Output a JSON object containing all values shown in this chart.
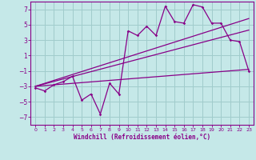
{
  "bg_color": "#c5e8e8",
  "line_color": "#880088",
  "grid_color": "#a0cccc",
  "xlabel": "Windchill (Refroidissement éolien,°C)",
  "xlim": [
    -0.5,
    23.5
  ],
  "ylim": [
    -8,
    8
  ],
  "yticks": [
    -7,
    -5,
    -3,
    -1,
    1,
    3,
    5,
    7
  ],
  "xticks": [
    0,
    1,
    2,
    3,
    4,
    5,
    6,
    7,
    8,
    9,
    10,
    11,
    12,
    13,
    14,
    15,
    16,
    17,
    18,
    19,
    20,
    21,
    22,
    23
  ],
  "scatter_x": [
    0,
    1,
    2,
    3,
    4,
    5,
    6,
    7,
    8,
    9,
    10,
    11,
    12,
    13,
    14,
    15,
    16,
    17,
    18,
    19,
    20,
    21,
    22,
    23
  ],
  "scatter_y": [
    -3.2,
    -3.6,
    -2.8,
    -2.4,
    -1.7,
    -4.8,
    -4.0,
    -6.6,
    -2.6,
    -4.0,
    4.2,
    3.6,
    4.8,
    3.6,
    7.4,
    5.4,
    5.2,
    7.6,
    7.3,
    5.2,
    5.2,
    3.0,
    2.8,
    -1.0
  ],
  "line1_x": [
    0,
    23
  ],
  "line1_y": [
    -3.0,
    -0.8
  ],
  "line2_x": [
    0,
    23
  ],
  "line2_y": [
    -3.0,
    5.8
  ],
  "line3_x": [
    0,
    23
  ],
  "line3_y": [
    -3.0,
    4.3
  ]
}
